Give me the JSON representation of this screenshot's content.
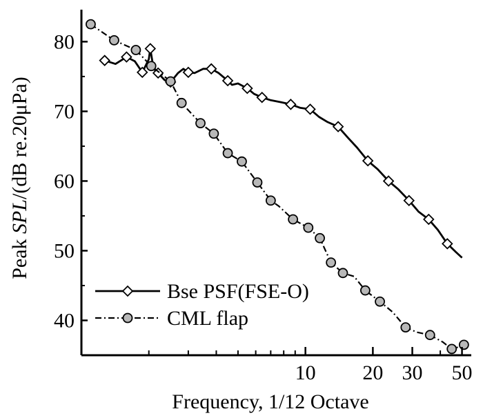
{
  "chart_data": {
    "type": "line",
    "title": "",
    "xlabel": "Frequency, 1/12 Octave",
    "ylabel_prefix": "Peak ",
    "ylabel_italic": "SPL",
    "ylabel_suffix": "/(dB re.20μPa)",
    "x_scale": "log",
    "xlim": [
      1,
      55
    ],
    "ylim": [
      35,
      84
    ],
    "x_ticks": [
      {
        "value": 10,
        "label": "10"
      },
      {
        "value": 20,
        "label": "20"
      },
      {
        "value": 30,
        "label": "30"
      },
      {
        "value": 50,
        "label": "50"
      }
    ],
    "x_minor_ticks": [
      2,
      3,
      4,
      5,
      6,
      7,
      8,
      9,
      40
    ],
    "y_ticks": [
      {
        "value": 40,
        "label": "40"
      },
      {
        "value": 50,
        "label": "50"
      },
      {
        "value": 60,
        "label": "60"
      },
      {
        "value": 70,
        "label": "70"
      },
      {
        "value": 80,
        "label": "80"
      }
    ],
    "legend_position": "bottom-left",
    "series": [
      {
        "name": "Bse PSF(FSE-O)",
        "line_style": "solid",
        "marker": "diamond",
        "color": "#000000",
        "marker_fill": "#ffffff",
        "x": [
          1.27,
          1.42,
          1.59,
          1.73,
          1.87,
          2.0,
          2.03,
          2.1,
          2.2,
          2.35,
          2.5,
          2.7,
          2.85,
          3.0,
          3.2,
          3.5,
          3.8,
          4.1,
          4.5,
          4.7,
          5.0,
          5.5,
          5.9,
          6.4,
          7.0,
          7.8,
          8.6,
          9.5,
          10.5,
          11.5,
          12.5,
          14.0,
          15.5,
          17.0,
          19.0,
          21.0,
          23.5,
          26.0,
          29.0,
          32.0,
          35.5,
          39.0,
          43.0,
          47.0,
          50.0
        ],
        "y": [
          77.3,
          76.8,
          77.8,
          77.2,
          75.6,
          77.5,
          79.0,
          76.1,
          75.5,
          74.5,
          74.2,
          75.5,
          76.1,
          75.6,
          75.5,
          76.1,
          76.1,
          75.5,
          74.4,
          73.8,
          74.0,
          73.3,
          72.5,
          72.0,
          71.6,
          71.3,
          71.0,
          70.5,
          70.3,
          69.2,
          68.5,
          67.8,
          66.2,
          64.8,
          62.9,
          61.7,
          60.0,
          58.8,
          57.2,
          55.6,
          54.5,
          53.0,
          51.0,
          49.8,
          49.0
        ],
        "marker_x": [
          1.27,
          1.59,
          1.87,
          2.03,
          2.2,
          2.5,
          3.0,
          3.8,
          4.5,
          5.5,
          6.4,
          8.6,
          10.5,
          14.0,
          19.0,
          23.5,
          29.0,
          35.5,
          43.0
        ]
      },
      {
        "name": "CML flap",
        "line_style": "dashdot",
        "marker": "circle",
        "color": "#000000",
        "marker_fill": "#b8b8b8",
        "x": [
          1.1,
          1.4,
          1.75,
          2.05,
          2.5,
          2.8,
          3.4,
          3.9,
          4.5,
          5.2,
          6.1,
          7.0,
          7.6,
          8.8,
          10.3,
          11.6,
          13.0,
          14.7,
          16.5,
          18.5,
          21.5,
          24.5,
          28.0,
          31.5,
          36.0,
          41.0,
          45.0,
          48.5,
          51.0
        ],
        "y": [
          82.5,
          80.2,
          78.8,
          76.5,
          74.3,
          71.2,
          68.3,
          66.8,
          64.0,
          62.8,
          59.8,
          57.2,
          56.4,
          54.5,
          53.3,
          51.8,
          48.3,
          46.8,
          46.3,
          44.3,
          42.7,
          41.2,
          39.0,
          38.3,
          37.9,
          36.9,
          35.9,
          36.2,
          36.5
        ],
        "marker_x": [
          1.1,
          1.4,
          1.75,
          2.05,
          2.5,
          2.8,
          3.4,
          3.9,
          4.5,
          5.2,
          6.1,
          7.0,
          8.8,
          10.3,
          11.6,
          13.0,
          14.7,
          18.5,
          21.5,
          28.0,
          36.0,
          45.0,
          51.0
        ]
      }
    ]
  }
}
